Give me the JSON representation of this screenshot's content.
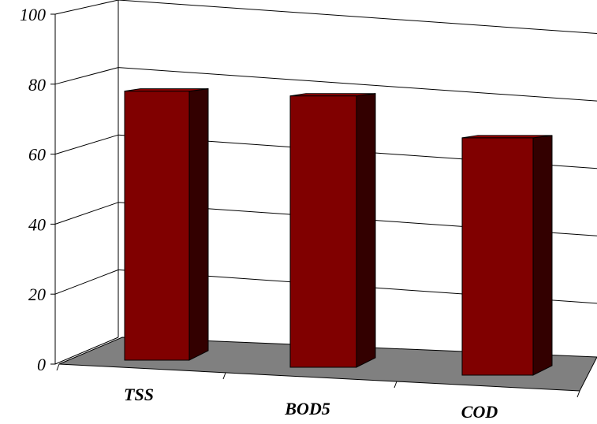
{
  "chart_data": {
    "type": "bar",
    "title": "",
    "xlabel": "",
    "ylabel": "",
    "categories": [
      "TSS",
      "BOD5",
      "COD"
    ],
    "values": [
      84,
      83,
      71
    ],
    "ylim": [
      0,
      100
    ],
    "yticks": [
      "0",
      "20",
      "40",
      "60",
      "80",
      "100"
    ],
    "grid": true,
    "legend": "none",
    "three_d": true,
    "colors": {
      "bar_front": "#800000",
      "bar_side": "#330000",
      "bar_top": "#990000",
      "floor": "#808080",
      "gridline": "#000000"
    }
  }
}
